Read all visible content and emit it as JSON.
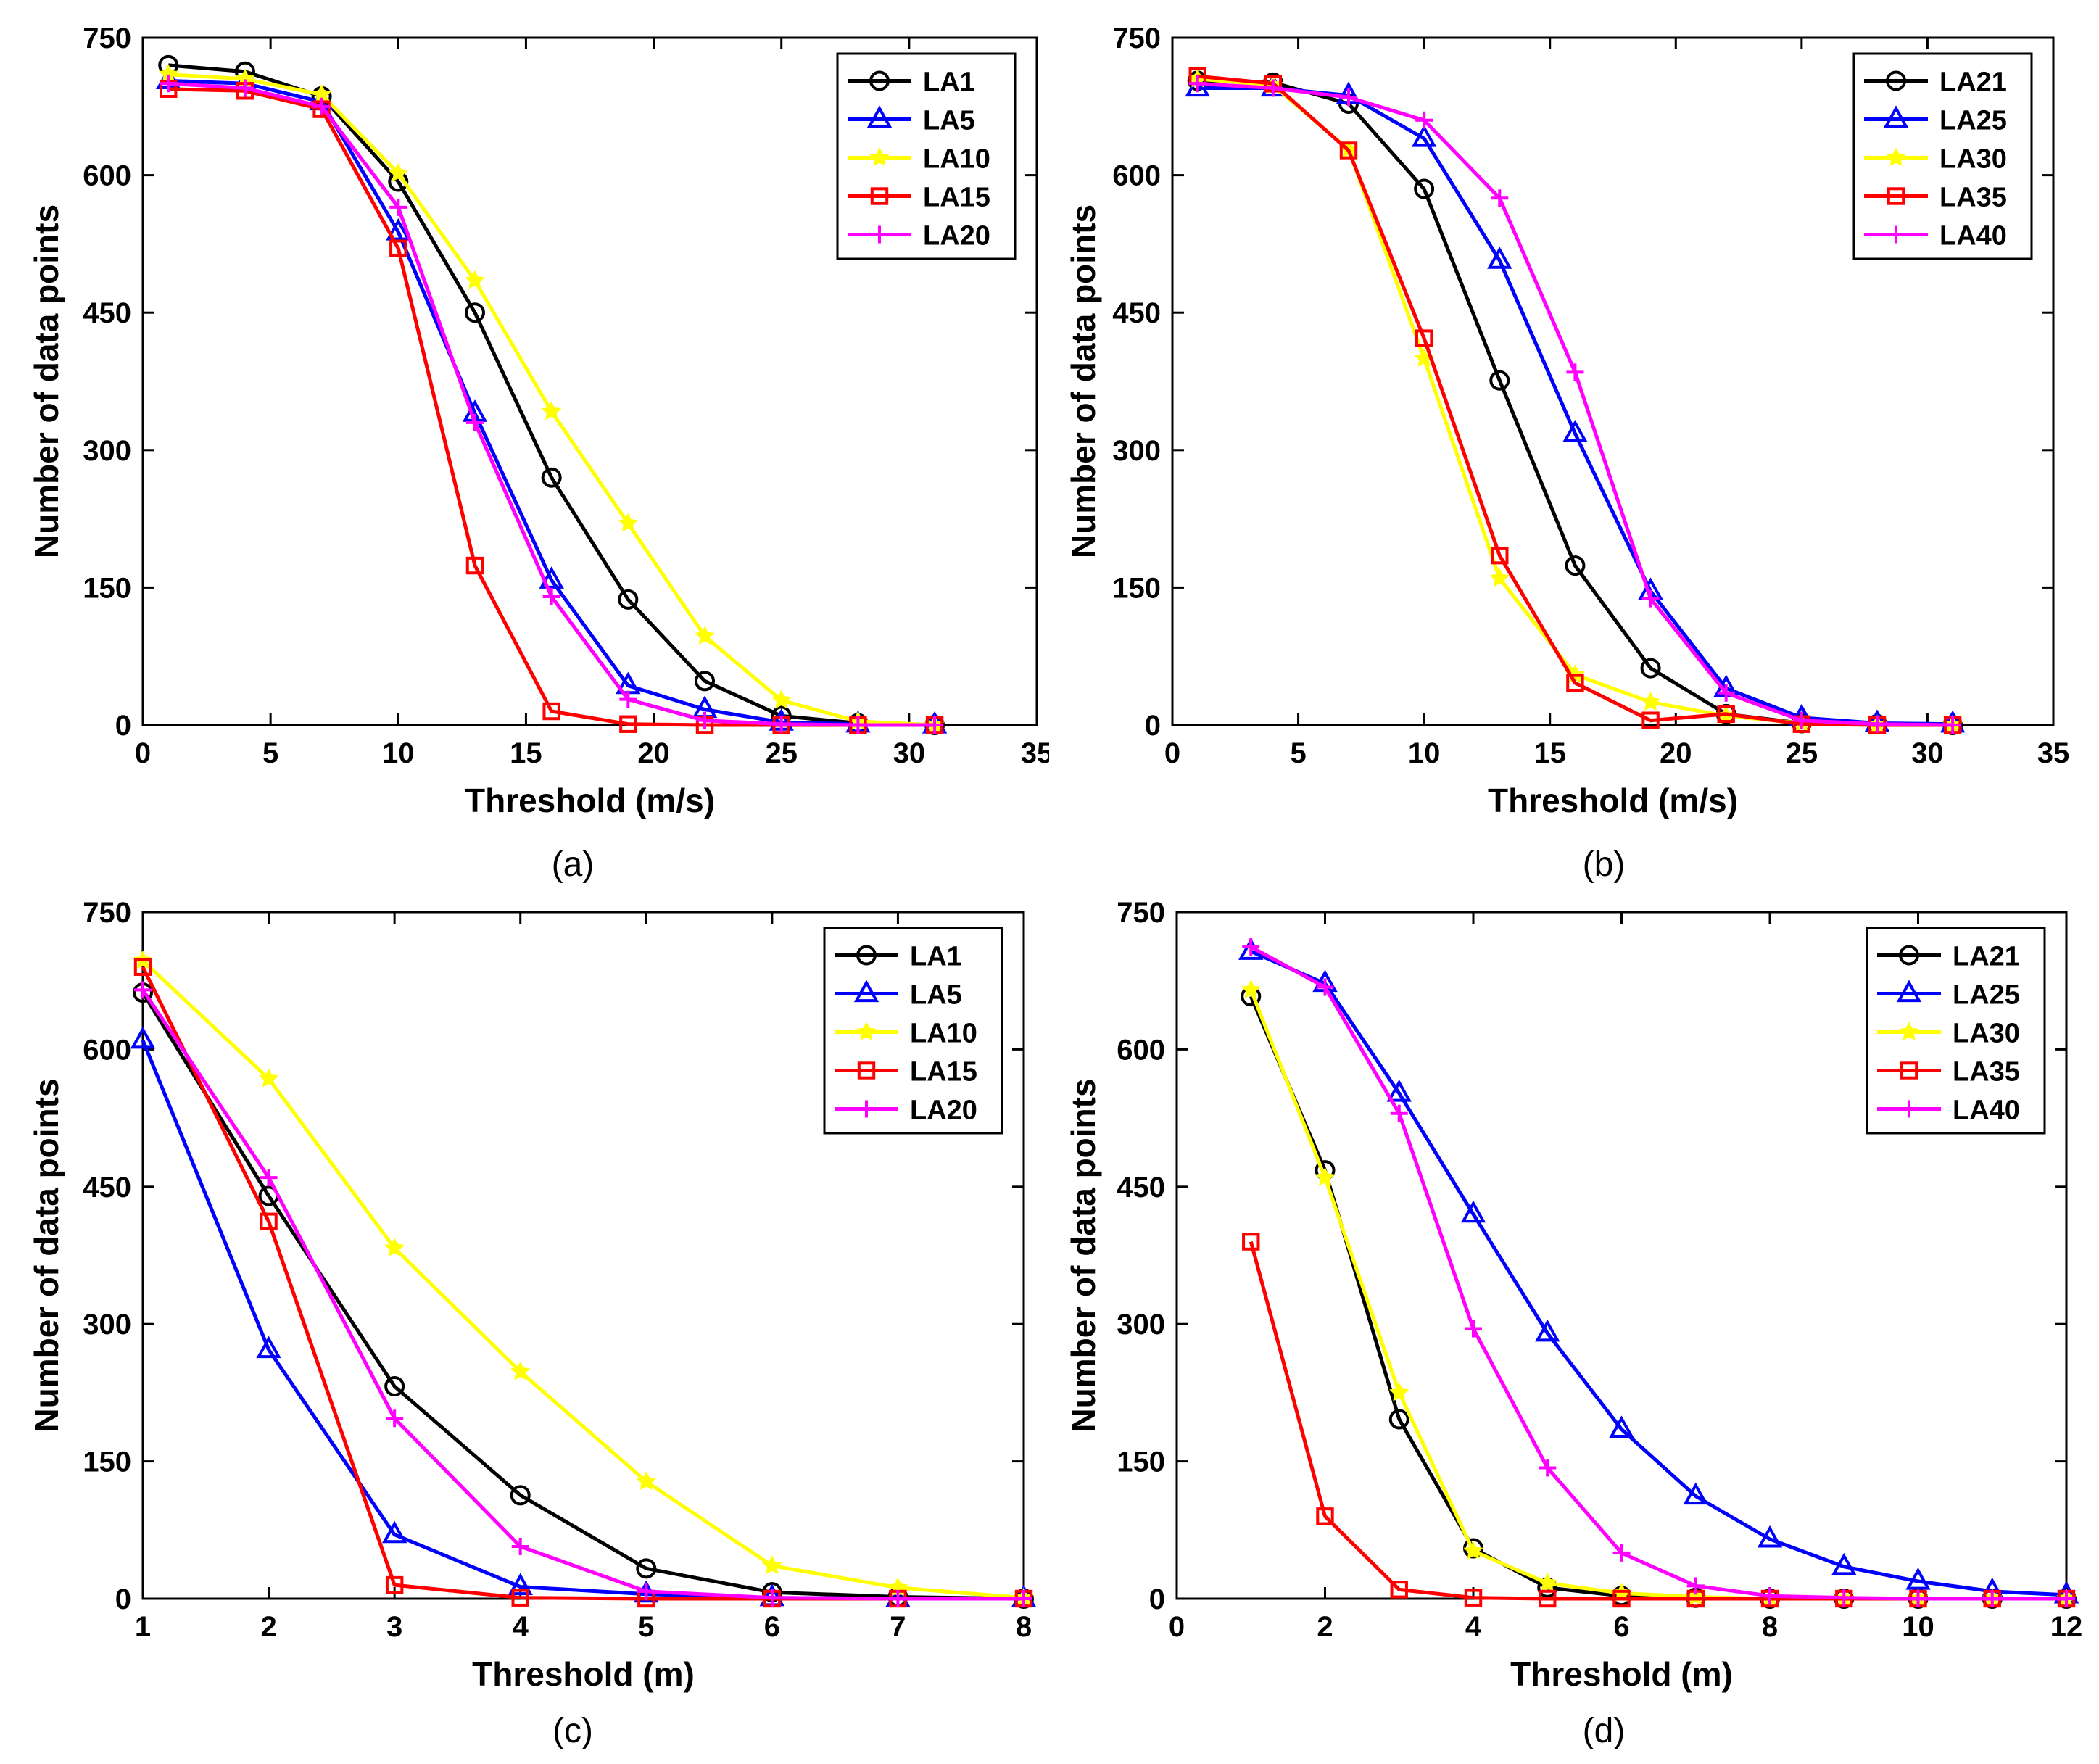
{
  "figure": {
    "panels": [
      {
        "caption": "(a)"
      },
      {
        "caption": "(b)"
      },
      {
        "caption": "(c)"
      },
      {
        "caption": "(d)"
      }
    ]
  },
  "styles": {
    "colors": {
      "black": "#000000",
      "blue": "#0000ff",
      "yellow": "#ffff00",
      "red": "#ff0000",
      "magenta": "#ff00ff"
    }
  },
  "chart_data": [
    {
      "type": "line",
      "panel": "(a)",
      "title": "",
      "xlabel": "Threshold (m/s)",
      "ylabel": "Number of data points",
      "xlim": [
        0,
        35
      ],
      "ylim": [
        0,
        750
      ],
      "xticks": [
        "0",
        "5",
        "10",
        "15",
        "20",
        "25",
        "30",
        "35"
      ],
      "xtick_values": [
        0,
        5,
        10,
        15,
        20,
        25,
        30,
        35
      ],
      "yticks": [
        "0",
        "150",
        "300",
        "450",
        "600",
        "750"
      ],
      "ytick_values": [
        0,
        150,
        300,
        450,
        600,
        750
      ],
      "legend_position": "top-right",
      "x": [
        1,
        4,
        7,
        10,
        13,
        16,
        19,
        22,
        25,
        28,
        31
      ],
      "series": [
        {
          "name": "LA1",
          "color": "black",
          "marker": "circle",
          "values": [
            720,
            713,
            686,
            593,
            450,
            270,
            137,
            48,
            10,
            2,
            0
          ]
        },
        {
          "name": "LA5",
          "color": "blue",
          "marker": "triangle",
          "values": [
            703,
            700,
            680,
            538,
            340,
            158,
            43,
            17,
            3,
            1,
            0
          ]
        },
        {
          "name": "LA10",
          "color": "yellow",
          "marker": "star",
          "values": [
            710,
            705,
            688,
            602,
            485,
            342,
            220,
            97,
            27,
            4,
            0
          ]
        },
        {
          "name": "LA15",
          "color": "red",
          "marker": "square",
          "values": [
            694,
            692,
            672,
            520,
            174,
            15,
            1,
            0,
            0,
            0,
            0
          ]
        },
        {
          "name": "LA20",
          "color": "magenta",
          "marker": "plus",
          "values": [
            700,
            695,
            675,
            565,
            330,
            140,
            28,
            5,
            1,
            0,
            0
          ]
        }
      ]
    },
    {
      "type": "line",
      "panel": "(b)",
      "title": "",
      "xlabel": "Threshold (m/s)",
      "ylabel": "Number of data points",
      "xlim": [
        0,
        35
      ],
      "ylim": [
        0,
        750
      ],
      "xticks": [
        "0",
        "5",
        "10",
        "15",
        "20",
        "25",
        "30",
        "35"
      ],
      "xtick_values": [
        0,
        5,
        10,
        15,
        20,
        25,
        30,
        35
      ],
      "yticks": [
        "0",
        "150",
        "300",
        "450",
        "600",
        "750"
      ],
      "ytick_values": [
        0,
        150,
        300,
        450,
        600,
        750
      ],
      "legend_position": "top-right",
      "x": [
        1,
        4,
        7,
        10,
        13,
        16,
        19,
        22,
        25,
        28,
        31
      ],
      "series": [
        {
          "name": "LA21",
          "color": "black",
          "marker": "circle",
          "values": [
            703,
            701,
            678,
            585,
            376,
            174,
            62,
            12,
            2,
            1,
            0
          ]
        },
        {
          "name": "LA25",
          "color": "blue",
          "marker": "triangle",
          "values": [
            695,
            695,
            687,
            640,
            507,
            318,
            146,
            40,
            8,
            2,
            1
          ]
        },
        {
          "name": "LA30",
          "color": "yellow",
          "marker": "star",
          "values": [
            705,
            698,
            628,
            400,
            160,
            55,
            25,
            10,
            2,
            0,
            0
          ]
        },
        {
          "name": "LA35",
          "color": "red",
          "marker": "square",
          "values": [
            708,
            700,
            627,
            422,
            185,
            46,
            5,
            12,
            1,
            0,
            0
          ]
        },
        {
          "name": "LA40",
          "color": "magenta",
          "marker": "plus",
          "values": [
            700,
            695,
            685,
            660,
            575,
            385,
            138,
            35,
            5,
            1,
            0
          ]
        }
      ]
    },
    {
      "type": "line",
      "panel": "(c)",
      "title": "",
      "xlabel": "Threshold (m)",
      "ylabel": "Number of data points",
      "xlim": [
        1,
        8
      ],
      "ylim": [
        0,
        750
      ],
      "xticks": [
        "1",
        "2",
        "3",
        "4",
        "5",
        "6",
        "7",
        "8"
      ],
      "xtick_values": [
        1,
        2,
        3,
        4,
        5,
        6,
        7,
        8
      ],
      "yticks": [
        "0",
        "150",
        "300",
        "450",
        "600",
        "750"
      ],
      "ytick_values": [
        0,
        150,
        300,
        450,
        600,
        750
      ],
      "legend_position": "top-right",
      "x": [
        1,
        2,
        3,
        4,
        5,
        6,
        7,
        8
      ],
      "series": [
        {
          "name": "LA1",
          "color": "black",
          "marker": "circle",
          "values": [
            662,
            440,
            232,
            113,
            33,
            7,
            2,
            0
          ]
        },
        {
          "name": "LA5",
          "color": "blue",
          "marker": "triangle",
          "values": [
            610,
            272,
            70,
            13,
            5,
            1,
            0,
            0
          ]
        },
        {
          "name": "LA10",
          "color": "yellow",
          "marker": "star",
          "values": [
            697,
            568,
            383,
            248,
            128,
            36,
            12,
            1
          ]
        },
        {
          "name": "LA15",
          "color": "red",
          "marker": "square",
          "values": [
            690,
            412,
            15,
            1,
            0,
            0,
            0,
            0
          ]
        },
        {
          "name": "LA20",
          "color": "magenta",
          "marker": "plus",
          "values": [
            665,
            460,
            197,
            57,
            8,
            1,
            0,
            0
          ]
        }
      ]
    },
    {
      "type": "line",
      "panel": "(d)",
      "title": "",
      "xlabel": "Threshold (m)",
      "ylabel": "Number of data points",
      "xlim": [
        0,
        12
      ],
      "ylim": [
        0,
        750
      ],
      "xticks": [
        "0",
        "2",
        "4",
        "6",
        "8",
        "10",
        "12"
      ],
      "xtick_values": [
        0,
        2,
        4,
        6,
        8,
        10,
        12
      ],
      "yticks": [
        "0",
        "150",
        "300",
        "450",
        "600",
        "750"
      ],
      "ytick_values": [
        0,
        150,
        300,
        450,
        600,
        750
      ],
      "legend_position": "top-right",
      "x": [
        1,
        2,
        3,
        4,
        5,
        6,
        7,
        8,
        9,
        10,
        11,
        12
      ],
      "series": [
        {
          "name": "LA21",
          "color": "black",
          "marker": "circle",
          "values": [
            658,
            468,
            196,
            55,
            12,
            3,
            1,
            0,
            0,
            0,
            0,
            0
          ]
        },
        {
          "name": "LA25",
          "color": "blue",
          "marker": "triangle",
          "values": [
            707,
            672,
            552,
            420,
            290,
            185,
            112,
            65,
            35,
            19,
            8,
            4
          ]
        },
        {
          "name": "LA30",
          "color": "yellow",
          "marker": "star",
          "values": [
            665,
            460,
            225,
            52,
            17,
            6,
            2,
            0,
            0,
            0,
            0,
            0
          ]
        },
        {
          "name": "LA35",
          "color": "red",
          "marker": "square",
          "values": [
            390,
            90,
            10,
            1,
            0,
            0,
            0,
            0,
            0,
            0,
            0,
            0
          ]
        },
        {
          "name": "LA40",
          "color": "magenta",
          "marker": "plus",
          "values": [
            712,
            668,
            530,
            295,
            143,
            50,
            14,
            3,
            1,
            0,
            0,
            0
          ]
        }
      ]
    }
  ]
}
